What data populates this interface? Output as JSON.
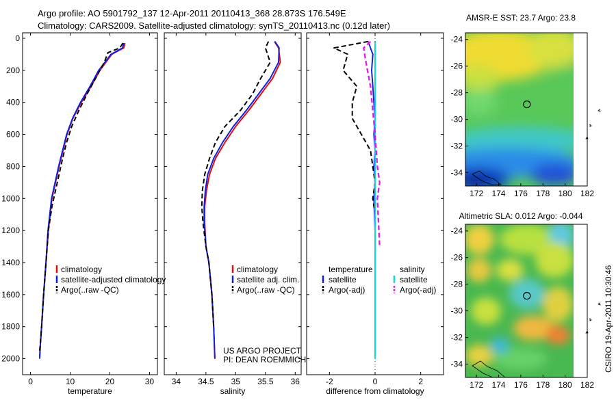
{
  "header": {
    "line1": "Argo profile: AO 5901792_137 12-Apr-2011 20110413_368 28.873S 176.549E",
    "line2": "Climatology: CARS2009. Satellite-adjusted climatology: synTS_20110413.nc (0.12d later)"
  },
  "footer": {
    "project": "US ARGO PROJECT",
    "pi": "PI: DEAN ROEMMICH",
    "stamp": "CSIRO 19-Apr-2011 10:30:46"
  },
  "colors": {
    "clim": "#e01010",
    "sat": "#1020e0",
    "argo": "#000000",
    "sal_sat": "#00e0e0",
    "sal_adj": "#e020e0"
  },
  "chart_data": [
    {
      "type": "line",
      "id": "temperature",
      "xlabel": "temperature",
      "ylabel": "",
      "xlim": [
        -2,
        32
      ],
      "ylim": [
        0,
        2100
      ],
      "xticks": [
        0,
        10,
        20,
        30
      ],
      "yticks": [
        0,
        200,
        400,
        600,
        800,
        1000,
        1200,
        1400,
        1600,
        1800,
        2000
      ],
      "legend": [
        "climatology",
        "satellite-adjusted climatology",
        "Argo(..raw -QC)"
      ],
      "series": [
        {
          "name": "climatology",
          "style": "clim",
          "x": [
            23.8,
            23.5,
            20.5,
            17.5,
            15.3,
            12.8,
            10.7,
            9.2,
            8.2,
            7.2,
            6.3,
            5.4,
            4.5,
            3.9,
            3.3,
            2.8,
            2.5,
            2.3
          ],
          "y": [
            30,
            60,
            100,
            200,
            300,
            400,
            500,
            600,
            700,
            800,
            900,
            1000,
            1200,
            1400,
            1600,
            1800,
            1900,
            2000
          ]
        },
        {
          "name": "satellite-adjusted climatology",
          "style": "sat",
          "x": [
            23.5,
            23.2,
            20.3,
            17.2,
            15.0,
            12.6,
            10.6,
            9.1,
            8.1,
            7.1,
            6.2,
            5.3,
            4.4,
            3.9,
            3.3,
            2.8,
            2.5,
            2.3
          ],
          "y": [
            30,
            60,
            100,
            200,
            300,
            400,
            500,
            600,
            700,
            800,
            900,
            1000,
            1200,
            1400,
            1600,
            1800,
            1900,
            2000
          ]
        },
        {
          "name": "Argo(..raw -QC)",
          "style": "argo",
          "x": [
            23.3,
            22.5,
            19.5,
            18.6,
            16.4,
            14.2,
            12.2,
            10.4,
            9.1,
            8.1,
            7.2,
            6.3,
            5.4,
            4.5,
            3.9,
            3.3,
            2.8,
            2.5,
            2.3
          ],
          "y": [
            30,
            60,
            90,
            150,
            250,
            350,
            450,
            550,
            650,
            750,
            850,
            950,
            1050,
            1200,
            1400,
            1600,
            1800,
            1900,
            1950
          ]
        }
      ]
    },
    {
      "type": "line",
      "id": "salinity",
      "xlabel": "salinity",
      "ylabel": "",
      "xlim": [
        33.8,
        36.1
      ],
      "ylim": [
        0,
        2100
      ],
      "xticks": [
        34,
        34.5,
        35,
        35.5,
        36
      ],
      "legend": [
        "climatology",
        "satellite adj. clim.",
        "Argo(..raw -QC)"
      ],
      "series": [
        {
          "name": "climatology",
          "style": "clim",
          "x": [
            35.65,
            35.72,
            35.75,
            35.62,
            35.42,
            35.22,
            35.0,
            34.82,
            34.66,
            34.56,
            34.51,
            34.48,
            34.48,
            34.5,
            34.55,
            34.6,
            34.63,
            34.65
          ],
          "y": [
            20,
            60,
            150,
            250,
            350,
            450,
            550,
            650,
            750,
            850,
            950,
            1050,
            1150,
            1300,
            1400,
            1600,
            1800,
            2000
          ]
        },
        {
          "name": "satellite adj. clim.",
          "style": "sat",
          "x": [
            35.66,
            35.73,
            35.72,
            35.58,
            35.38,
            35.18,
            34.96,
            34.78,
            34.63,
            34.53,
            34.49,
            34.47,
            34.47,
            34.5,
            34.55,
            34.6,
            34.63,
            34.65
          ],
          "y": [
            20,
            60,
            150,
            250,
            350,
            450,
            550,
            650,
            750,
            850,
            950,
            1050,
            1150,
            1300,
            1400,
            1600,
            1800,
            2000
          ]
        },
        {
          "name": "Argo(..raw -QC)",
          "style": "argo",
          "x": [
            35.55,
            35.5,
            35.58,
            35.42,
            35.28,
            35.08,
            34.82,
            34.66,
            34.56,
            34.48,
            34.44,
            34.43,
            34.45,
            34.5,
            34.55,
            34.6,
            34.63
          ],
          "y": [
            20,
            60,
            150,
            250,
            350,
            450,
            550,
            650,
            750,
            850,
            950,
            1050,
            1150,
            1300,
            1400,
            1600,
            1800
          ]
        }
      ]
    },
    {
      "type": "line",
      "id": "difference",
      "xlabel": "difference from climatology",
      "ylabel": "",
      "xlim": [
        -3,
        3
      ],
      "ylim": [
        0,
        2100
      ],
      "xticks": [
        -2,
        0,
        2
      ],
      "legend_groups": {
        "temperature": [
          "satellite",
          "Argo(-adj)"
        ],
        "salinity": [
          "satellite",
          "Argo(-adj)"
        ]
      },
      "series": [
        {
          "name": "temperature satellite",
          "style": "sat",
          "x": [
            -0.3,
            -0.2,
            -0.1,
            -0.15,
            -0.1,
            -0.05,
            0.0,
            -0.05,
            0.0,
            -0.05,
            0.0,
            -0.05,
            0.0,
            0.0,
            0.0,
            0.0
          ],
          "y": [
            20,
            60,
            100,
            200,
            300,
            400,
            500,
            600,
            700,
            800,
            900,
            1000,
            1200,
            1400,
            1800,
            2000
          ]
        },
        {
          "name": "temperature Argo(-adj)",
          "style": "argo",
          "x": [
            -0.3,
            -1.8,
            -1.2,
            -1.4,
            -0.8,
            -1.0,
            -1.0,
            -0.6,
            -0.2,
            -0.1,
            0.0,
            -0.1,
            0.0
          ],
          "y": [
            20,
            60,
            100,
            200,
            300,
            400,
            500,
            600,
            700,
            800,
            900,
            1000,
            1100
          ]
        },
        {
          "name": "salinity satellite",
          "style": "sal_sat",
          "x": [
            0.0,
            0.0,
            0.0,
            0.0,
            0.0,
            0.0,
            0.0,
            0.0
          ],
          "y": [
            20,
            200,
            400,
            600,
            800,
            1200,
            1600,
            2000
          ]
        },
        {
          "name": "salinity Argo(-adj)",
          "style": "sal_adj",
          "x": [
            -0.2,
            -0.5,
            -0.4,
            -0.2,
            -0.1,
            0.0,
            0.1,
            0.2,
            0.1,
            0.2
          ],
          "y": [
            20,
            60,
            150,
            300,
            450,
            600,
            800,
            900,
            1000,
            1300
          ]
        }
      ]
    },
    {
      "type": "heatmap",
      "id": "sst_map",
      "title": "AMSR-E SST: 23.7 Argo: 23.8",
      "xlim": [
        171,
        182
      ],
      "ylim": [
        -35,
        -23.5
      ],
      "xticks": [
        172,
        174,
        176,
        178,
        180,
        182
      ],
      "yticks": [
        -24,
        -26,
        -28,
        -30,
        -32,
        -34
      ],
      "marker": {
        "lon": 176.55,
        "lat": -28.87
      }
    },
    {
      "type": "heatmap",
      "id": "sla_map",
      "title": "Altimetric SLA: 0.012 Argo: -0.044",
      "xlim": [
        171,
        182
      ],
      "ylim": [
        -35,
        -23.5
      ],
      "xticks": [
        172,
        174,
        176,
        178,
        180,
        182
      ],
      "yticks": [
        -24,
        -26,
        -28,
        -30,
        -32,
        -34
      ],
      "marker": {
        "lon": 176.55,
        "lat": -28.87
      }
    }
  ]
}
